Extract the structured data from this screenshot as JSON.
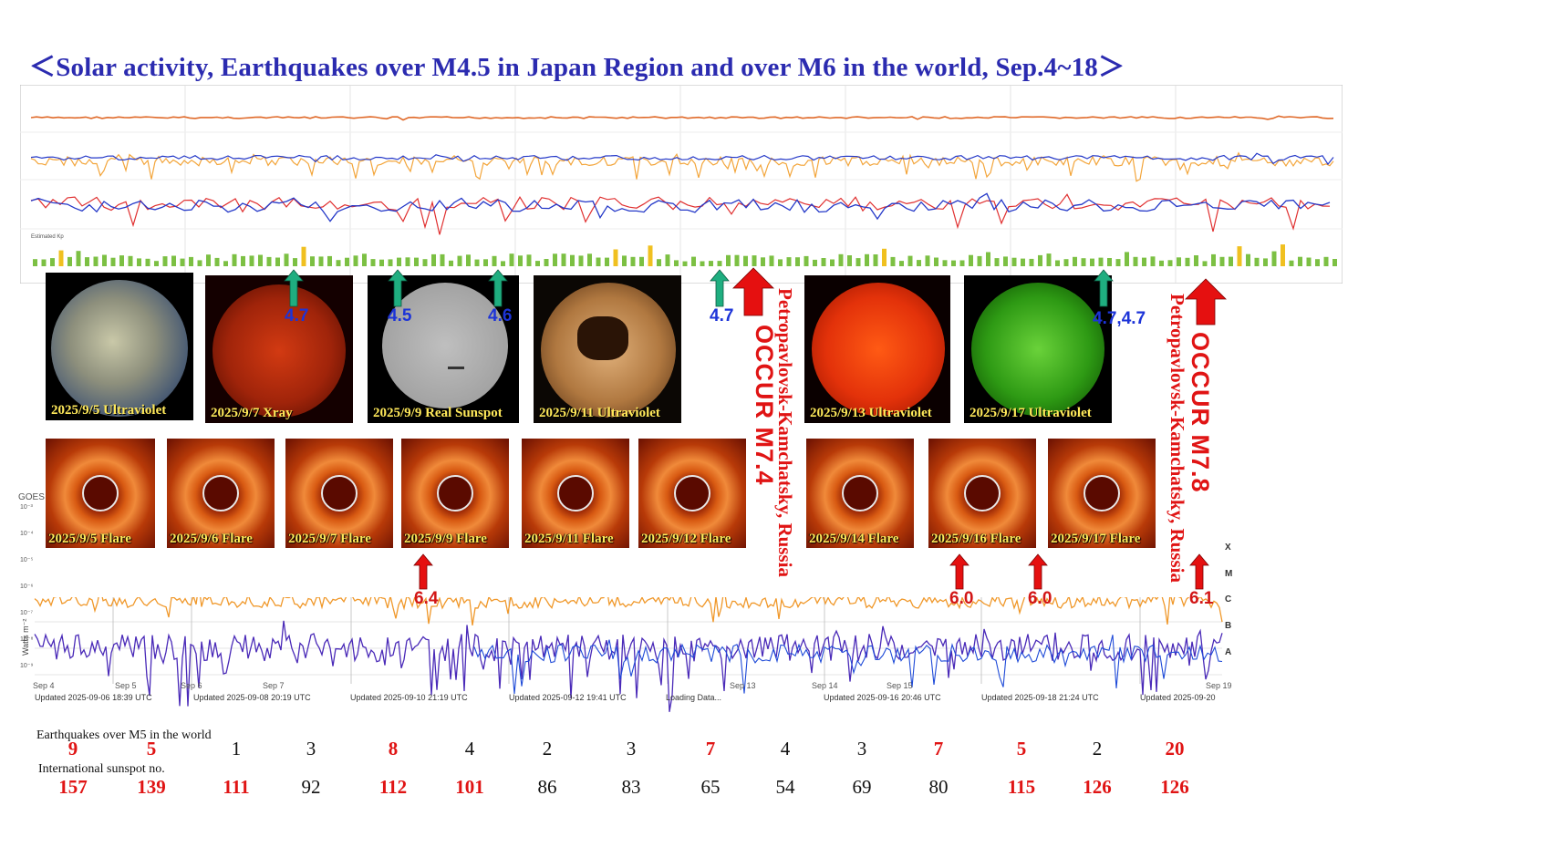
{
  "title": "＜Solar activity, Earthquakes over M4.5 in Japan Region and over M6 in the world, Sep.4~18＞",
  "colors": {
    "title": "#2b2bb0",
    "label_yellow": "#ffe95a",
    "red": "#e01414",
    "blue": "#1d34d8",
    "green_arrow": "#1fae80"
  },
  "goes_strip": {
    "kp_label": "Estimated Kp"
  },
  "sun_images": [
    {
      "label": "2025/9/5 Ultraviolet"
    },
    {
      "label": "2025/9/7 Xray"
    },
    {
      "label": "2025/9/9  Real Sunspot"
    },
    {
      "label": "2025/9/11 Ultraviolet"
    },
    {
      "label": "2025/9/13 Ultraviolet"
    },
    {
      "label": "2025/9/17 Ultraviolet"
    }
  ],
  "flare_images": [
    {
      "label": "2025/9/5 Flare"
    },
    {
      "label": "2025/9/6 Flare"
    },
    {
      "label": "2025/9/7 Flare"
    },
    {
      "label": "2025/9/9 Flare"
    },
    {
      "label": "2025/9/11 Flare"
    },
    {
      "label": "2025/9/12 Flare"
    },
    {
      "label": "2025/9/14 Flare"
    },
    {
      "label": "2025/9/16 Flare"
    },
    {
      "label": "2025/9/17 Flare"
    }
  ],
  "japan_quakes": [
    {
      "mag": "4.7"
    },
    {
      "mag": "4.5"
    },
    {
      "mag": "4.6"
    },
    {
      "mag": "4.7"
    },
    {
      "mag": "4.7,4.7"
    }
  ],
  "world_quakes": [
    {
      "mag": "6.4"
    },
    {
      "mag": "6.0"
    },
    {
      "mag": "6.0"
    },
    {
      "mag": "6.1"
    }
  ],
  "major_events": [
    {
      "occur": "OCCUR M7.4",
      "place": "Petropavlovsk-Kamchatsky, Russia"
    },
    {
      "occur": "OCCUR M7.8",
      "place": "Petropavlovsk-Kamchatsky, Russia"
    }
  ],
  "xray_chart": {
    "y_axis_label": "Watts m⁻²",
    "title_fragment": "GOES",
    "class_labels": [
      "X",
      "M",
      "C",
      "B",
      "A"
    ],
    "ytick_labels": [
      "10⁻³",
      "10⁻⁴",
      "10⁻⁵",
      "10⁻⁶",
      "10⁻⁷",
      "10⁻⁸",
      "10⁻⁹"
    ],
    "date_ticks": [
      "Sep 4",
      "Sep 5",
      "Sep 6",
      "Sep 7",
      "Sep 13",
      "Sep 14",
      "Sep 15",
      "Sep 19"
    ],
    "updated": [
      "Updated 2025-09-06 18:39 UTC",
      "Updated 2025-09-08 20:19 UTC",
      "Updated 2025-09-10 21:19 UTC",
      "Updated 2025-09-12 19:41 UTC",
      "Loading Data...",
      "Updated 2025-09-16 20:46 UTC",
      "Updated 2025-09-18 21:24 UTC",
      "Updated 2025-09-20"
    ]
  },
  "earthquake_row": {
    "label": "Earthquakes over M5 in the world",
    "counts": [
      {
        "value": "9",
        "red": true
      },
      {
        "value": "5",
        "red": true
      },
      {
        "value": "1",
        "red": false
      },
      {
        "value": "3",
        "red": false
      },
      {
        "value": "8",
        "red": true
      },
      {
        "value": "4",
        "red": false
      },
      {
        "value": "2",
        "red": false
      },
      {
        "value": "3",
        "red": false
      },
      {
        "value": "7",
        "red": true
      },
      {
        "value": "4",
        "red": false
      },
      {
        "value": "3",
        "red": false
      },
      {
        "value": "7",
        "red": true
      },
      {
        "value": "5",
        "red": true
      },
      {
        "value": "2",
        "red": false
      },
      {
        "value": "20",
        "red": true
      }
    ]
  },
  "sunspot_row": {
    "label": "International sunspot no.",
    "counts": [
      {
        "value": "157",
        "red": true
      },
      {
        "value": "139",
        "red": true
      },
      {
        "value": "111",
        "red": true
      },
      {
        "value": "92",
        "red": false
      },
      {
        "value": "112",
        "red": true
      },
      {
        "value": "101",
        "red": true
      },
      {
        "value": "86",
        "red": false
      },
      {
        "value": "83",
        "red": false
      },
      {
        "value": "65",
        "red": false
      },
      {
        "value": "54",
        "red": false
      },
      {
        "value": "69",
        "red": false
      },
      {
        "value": "80",
        "red": false
      },
      {
        "value": "115",
        "red": true
      },
      {
        "value": "126",
        "red": true
      },
      {
        "value": "126",
        "red": true
      }
    ]
  }
}
